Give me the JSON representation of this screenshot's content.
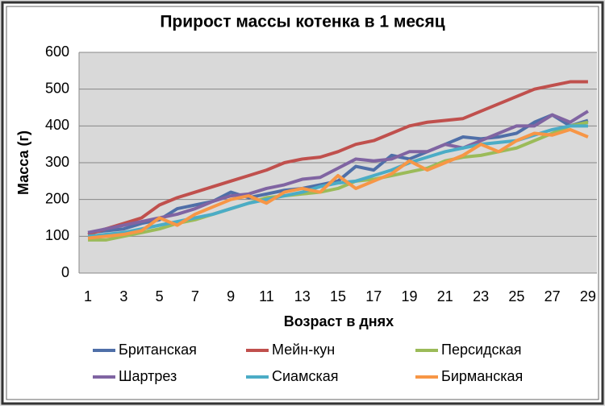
{
  "chart_data": {
    "type": "line",
    "title": "Прирост массы котенка в 1 месяц",
    "x_label": "Возраст в днях",
    "y_label": "Масса (г)",
    "categories": [
      "1",
      null,
      "3",
      null,
      "5",
      null,
      "7",
      null,
      "9",
      null,
      "11",
      null,
      "13",
      null,
      "15",
      null,
      "17",
      null,
      "19",
      null,
      "21",
      null,
      "23",
      null,
      "25",
      null,
      "27",
      null,
      "29"
    ],
    "ylim": [
      0,
      600
    ],
    "yticks": [
      0,
      100,
      200,
      300,
      400,
      500,
      600
    ],
    "grid": true,
    "series": [
      {
        "name": "Британская",
        "color": "#4F6FA8",
        "values": [
          110,
          115,
          120,
          135,
          145,
          175,
          185,
          195,
          220,
          205,
          215,
          225,
          230,
          240,
          250,
          290,
          280,
          320,
          310,
          330,
          350,
          370,
          365,
          370,
          380,
          410,
          430,
          400,
          415
        ]
      },
      {
        "name": "Мейн-кун",
        "color": "#C0504D",
        "values": [
          105,
          120,
          135,
          150,
          185,
          205,
          220,
          235,
          250,
          265,
          280,
          300,
          310,
          315,
          330,
          350,
          360,
          380,
          400,
          410,
          415,
          420,
          440,
          460,
          480,
          500,
          510,
          520,
          520
        ]
      },
      {
        "name": "Персидская",
        "color": "#9BBB59",
        "values": [
          90,
          90,
          100,
          110,
          120,
          135,
          145,
          160,
          175,
          190,
          205,
          210,
          215,
          220,
          230,
          250,
          255,
          265,
          275,
          285,
          305,
          315,
          320,
          330,
          340,
          360,
          380,
          400,
          410
        ]
      },
      {
        "name": "Шартрез",
        "color": "#8064A2",
        "values": [
          110,
          120,
          130,
          140,
          150,
          160,
          175,
          195,
          210,
          215,
          230,
          240,
          255,
          260,
          285,
          310,
          305,
          310,
          330,
          330,
          350,
          340,
          360,
          380,
          400,
          400,
          430,
          410,
          440
        ]
      },
      {
        "name": "Сиамская",
        "color": "#4BACC6",
        "values": [
          100,
          105,
          110,
          120,
          130,
          140,
          150,
          160,
          175,
          190,
          200,
          210,
          220,
          235,
          245,
          250,
          265,
          280,
          300,
          315,
          330,
          340,
          350,
          355,
          360,
          375,
          390,
          400,
          400
        ]
      },
      {
        "name": "Бирманская",
        "color": "#F79646",
        "values": [
          95,
          100,
          105,
          115,
          150,
          130,
          160,
          180,
          200,
          210,
          190,
          220,
          230,
          220,
          265,
          230,
          250,
          270,
          305,
          280,
          300,
          320,
          350,
          330,
          360,
          380,
          375,
          390,
          370
        ]
      }
    ]
  }
}
